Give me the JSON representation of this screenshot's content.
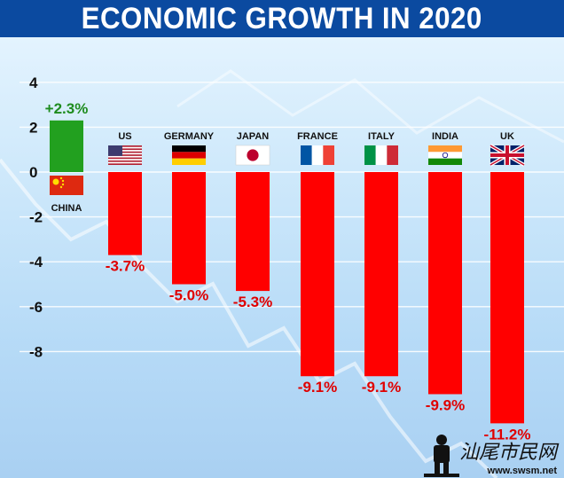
{
  "chart_data": {
    "type": "bar",
    "title": "ECONOMIC GROWTH IN 2020",
    "categories": [
      "CHINA",
      "US",
      "GERMANY",
      "JAPAN",
      "FRANCE",
      "ITALY",
      "INDIA",
      "UK"
    ],
    "values": [
      2.3,
      -3.7,
      -5.0,
      -5.3,
      -9.1,
      -9.1,
      -9.9,
      -11.2
    ],
    "value_labels": [
      "+2.3%",
      "-3.7%",
      "-5.0%",
      "-5.3%",
      "-9.1%",
      "-9.1%",
      "-9.9%",
      "-11.2%"
    ],
    "yticks": [
      4,
      2,
      0,
      -2,
      -4,
      -6,
      -8
    ],
    "ylim": [
      -11.6,
      4.4
    ],
    "grid": true,
    "colors": {
      "positive": "#22a01f",
      "negative": "#ff0000",
      "positive_label": "#1e8c1e",
      "negative_label": "#e00000",
      "header": "#0b4aa0"
    },
    "flags": [
      "china-flag-icon",
      "us-flag-icon",
      "germany-flag-icon",
      "japan-flag-icon",
      "france-flag-icon",
      "italy-flag-icon",
      "india-flag-icon",
      "uk-flag-icon"
    ]
  },
  "watermark": {
    "text": "汕尾市民网",
    "url": "www.swsm.net"
  }
}
